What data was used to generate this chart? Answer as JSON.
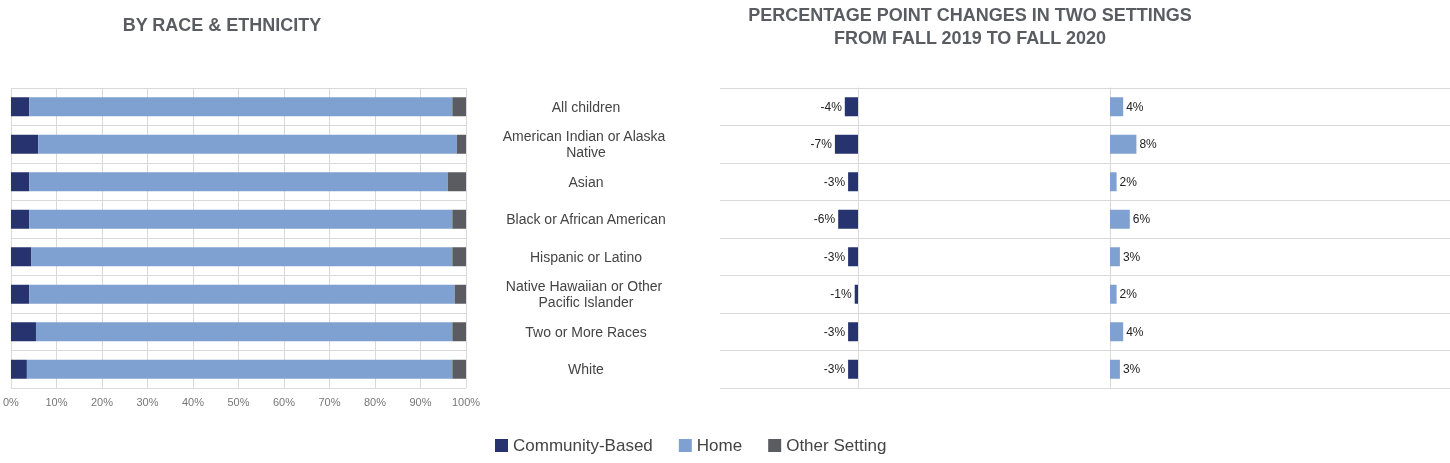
{
  "chart_data": [
    {
      "type": "bar",
      "orientation": "horizontal",
      "stacked": true,
      "title": "BY RACE & ETHNICITY",
      "categories": [
        "All children",
        "American Indian or Alaska Native",
        "Asian",
        "Black or African American",
        "Hispanic or Latino",
        "Native Hawaiian or Other Pacific Islander",
        "Two or More Races",
        "White"
      ],
      "series": [
        {
          "name": "Community-Based",
          "color": "#27336e",
          "values": [
            4,
            6,
            4,
            4,
            4.5,
            4,
            5.5,
            3.5
          ]
        },
        {
          "name": "Home",
          "color": "#7fa1d1",
          "values": [
            93,
            92,
            92,
            93,
            92.5,
            93.5,
            91.5,
            93.5
          ]
        },
        {
          "name": "Other Setting",
          "color": "#5a5c61",
          "values": [
            3,
            2,
            4,
            3,
            3,
            2.5,
            3,
            3
          ]
        }
      ],
      "xlim": [
        0,
        100
      ],
      "xticks": [
        {
          "value": 0,
          "label": "0%"
        },
        {
          "value": 10,
          "label": "10%"
        },
        {
          "value": 20,
          "label": "20%"
        },
        {
          "value": 30,
          "label": "30%"
        },
        {
          "value": 40,
          "label": "40%"
        },
        {
          "value": 50,
          "label": "50%"
        },
        {
          "value": 60,
          "label": "60%"
        },
        {
          "value": 70,
          "label": "70%"
        },
        {
          "value": 80,
          "label": "80%"
        },
        {
          "value": 90,
          "label": "90%"
        },
        {
          "value": 100,
          "label": "100%"
        }
      ],
      "grid": true,
      "legend": "bottom"
    },
    {
      "type": "bar",
      "orientation": "horizontal",
      "title": "PERCENTAGE POINT CHANGES IN TWO SETTINGS\nFROM FALL 2019 TO FALL 2020",
      "categories": [
        "All children",
        "American Indian or Alaska Native",
        "Asian",
        "Black or African American",
        "Hispanic or Latino",
        "Native Hawaiian or Other Pacific Islander",
        "Two or More Races",
        "White"
      ],
      "color": "#27336e",
      "values": [
        -4,
        -7,
        -3,
        -6,
        -3,
        -1,
        -3,
        -3
      ],
      "value_labels": [
        "-4%",
        "-7%",
        "-3%",
        "-6%",
        "-3%",
        "-1%",
        "-3%",
        "-3%"
      ],
      "tick_labels": false,
      "grid": "y"
    },
    {
      "type": "bar",
      "orientation": "horizontal",
      "categories": [
        "All children",
        "American Indian or Alaska Native",
        "Asian",
        "Black or African American",
        "Hispanic or Latino",
        "Native Hawaiian or Other Pacific Islander",
        "Two or More Races",
        "White"
      ],
      "color": "#7fa1d1",
      "values": [
        4,
        8,
        2,
        6,
        3,
        2,
        4,
        3
      ],
      "value_labels": [
        "4%",
        "8%",
        "2%",
        "6%",
        "3%",
        "2%",
        "4%",
        "3%"
      ],
      "tick_labels": false,
      "grid": "y"
    }
  ]
}
